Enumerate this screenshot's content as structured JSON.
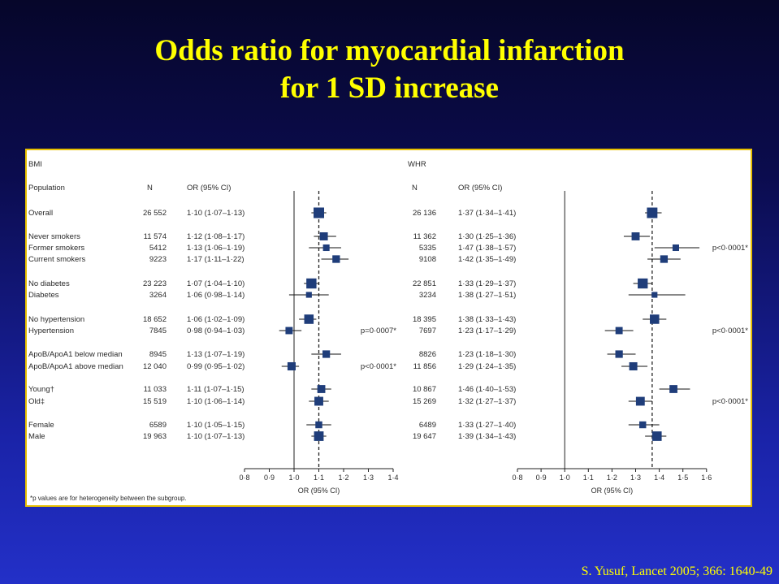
{
  "title": {
    "line1": "Odds ratio for myocardial infarction",
    "line2": "for 1 SD increase"
  },
  "citation": "S. Yusuf, Lancet 2005; 366: 1640-49",
  "colors": {
    "title": "#ffff00",
    "marker": "#1f3d7a",
    "frame": "#e8c000"
  },
  "chart_data": [
    {
      "type": "forest",
      "title": "BMI",
      "column_headers": {
        "population": "Population",
        "n": "N",
        "or": "OR (95% CI)"
      },
      "xlabel": "OR (95% CI)",
      "xticks": [
        "0·8",
        "0·9",
        "1·0",
        "1·1",
        "1·2",
        "1·3",
        "1·4"
      ],
      "xlim": [
        0.8,
        1.4
      ],
      "reference_line": 1.0,
      "overall_line": 1.1,
      "footnote": "*p values are for heterogeneity between the subgroup.",
      "rows": [
        {
          "label": "Overall",
          "n": "26 552",
          "or_text": "1·10 (1·07–1·13)",
          "or": 1.1,
          "lo": 1.07,
          "hi": 1.13,
          "weight": 26552
        },
        {
          "label": "Never smokers",
          "n": "11 574",
          "or_text": "1·12 (1·08–1·17)",
          "or": 1.12,
          "lo": 1.08,
          "hi": 1.17,
          "weight": 11574
        },
        {
          "label": "Former smokers",
          "n": "5412",
          "or_text": "1·13 (1·06–1·19)",
          "or": 1.13,
          "lo": 1.06,
          "hi": 1.19,
          "weight": 5412
        },
        {
          "label": "Current smokers",
          "n": "9223",
          "or_text": "1·17 (1·11–1·22)",
          "or": 1.17,
          "lo": 1.11,
          "hi": 1.22,
          "weight": 9223
        },
        {
          "label": "No diabetes",
          "n": "23 223",
          "or_text": "1·07 (1·04–1·10)",
          "or": 1.07,
          "lo": 1.04,
          "hi": 1.1,
          "weight": 23223
        },
        {
          "label": "Diabetes",
          "n": "3264",
          "or_text": "1·06 (0·98–1·14)",
          "or": 1.06,
          "lo": 0.98,
          "hi": 1.14,
          "weight": 3264
        },
        {
          "label": "No hypertension",
          "n": "18 652",
          "or_text": "1·06 (1·02–1·09)",
          "or": 1.06,
          "lo": 1.02,
          "hi": 1.09,
          "weight": 18652
        },
        {
          "label": "Hypertension",
          "n": "7845",
          "or_text": "0·98 (0·94–1·03)",
          "or": 0.98,
          "lo": 0.94,
          "hi": 1.03,
          "weight": 7845,
          "p": "p=0·0007*"
        },
        {
          "label": "ApoB/ApoA1 below median",
          "n": "8945",
          "or_text": "1·13 (1·07–1·19)",
          "or": 1.13,
          "lo": 1.07,
          "hi": 1.19,
          "weight": 8945
        },
        {
          "label": "ApoB/ApoA1 above median",
          "n": "12 040",
          "or_text": "0·99 (0·95–1·02)",
          "or": 0.99,
          "lo": 0.95,
          "hi": 1.02,
          "weight": 12040,
          "p": "p<0·0001*"
        },
        {
          "label": "Young†",
          "n": "11 033",
          "or_text": "1·11 (1·07–1·15)",
          "or": 1.11,
          "lo": 1.07,
          "hi": 1.15,
          "weight": 11033
        },
        {
          "label": "Old‡",
          "n": "15 519",
          "or_text": "1·10 (1·06–1·14)",
          "or": 1.1,
          "lo": 1.06,
          "hi": 1.14,
          "weight": 15519
        },
        {
          "label": "Female",
          "n": "6589",
          "or_text": "1·10 (1·05–1·15)",
          "or": 1.1,
          "lo": 1.05,
          "hi": 1.15,
          "weight": 6589
        },
        {
          "label": "Male",
          "n": "19 963",
          "or_text": "1·10 (1·07–1·13)",
          "or": 1.1,
          "lo": 1.07,
          "hi": 1.13,
          "weight": 19963
        }
      ]
    },
    {
      "type": "forest",
      "title": "WHR",
      "column_headers": {
        "n": "N",
        "or": "OR (95% CI)"
      },
      "xlabel": "OR (95% CI)",
      "xticks": [
        "0·8",
        "0·9",
        "1·0",
        "1·1",
        "1·2",
        "1·3",
        "1·4",
        "1·5",
        "1·6"
      ],
      "xlim": [
        0.8,
        1.6
      ],
      "reference_line": 1.0,
      "overall_line": 1.37,
      "rows": [
        {
          "n": "26 136",
          "or_text": "1·37 (1·34–1·41)",
          "or": 1.37,
          "lo": 1.34,
          "hi": 1.41,
          "weight": 26136
        },
        {
          "n": "11 362",
          "or_text": "1·30 (1·25–1·36)",
          "or": 1.3,
          "lo": 1.25,
          "hi": 1.36,
          "weight": 11362
        },
        {
          "n": "5335",
          "or_text": "1·47 (1·38–1·57)",
          "or": 1.47,
          "lo": 1.38,
          "hi": 1.57,
          "weight": 5335,
          "p": "p<0·0001*"
        },
        {
          "n": "9108",
          "or_text": "1·42 (1·35–1·49)",
          "or": 1.42,
          "lo": 1.35,
          "hi": 1.49,
          "weight": 9108
        },
        {
          "n": "22 851",
          "or_text": "1·33 (1·29–1·37)",
          "or": 1.33,
          "lo": 1.29,
          "hi": 1.37,
          "weight": 22851
        },
        {
          "n": "3234",
          "or_text": "1·38 (1·27–1·51)",
          "or": 1.38,
          "lo": 1.27,
          "hi": 1.51,
          "weight": 3234
        },
        {
          "n": "18 395",
          "or_text": "1·38 (1·33–1·43)",
          "or": 1.38,
          "lo": 1.33,
          "hi": 1.43,
          "weight": 18395
        },
        {
          "n": "7697",
          "or_text": "1·23 (1·17–1·29)",
          "or": 1.23,
          "lo": 1.17,
          "hi": 1.29,
          "weight": 7697,
          "p": "p<0·0001*"
        },
        {
          "n": "8826",
          "or_text": "1·23 (1·18–1·30)",
          "or": 1.23,
          "lo": 1.18,
          "hi": 1.3,
          "weight": 8826
        },
        {
          "n": "11 856",
          "or_text": "1·29 (1·24–1·35)",
          "or": 1.29,
          "lo": 1.24,
          "hi": 1.35,
          "weight": 11856
        },
        {
          "n": "10 867",
          "or_text": "1·46 (1·40–1·53)",
          "or": 1.46,
          "lo": 1.4,
          "hi": 1.53,
          "weight": 10867
        },
        {
          "n": "15 269",
          "or_text": "1·32 (1·27–1·37)",
          "or": 1.32,
          "lo": 1.27,
          "hi": 1.37,
          "weight": 15269,
          "p": "p<0·0001*"
        },
        {
          "n": "6489",
          "or_text": "1·33 (1·27–1·40)",
          "or": 1.33,
          "lo": 1.27,
          "hi": 1.4,
          "weight": 6489
        },
        {
          "n": "19 647",
          "or_text": "1·39 (1·34–1·43)",
          "or": 1.39,
          "lo": 1.34,
          "hi": 1.43,
          "weight": 19647
        }
      ]
    }
  ]
}
